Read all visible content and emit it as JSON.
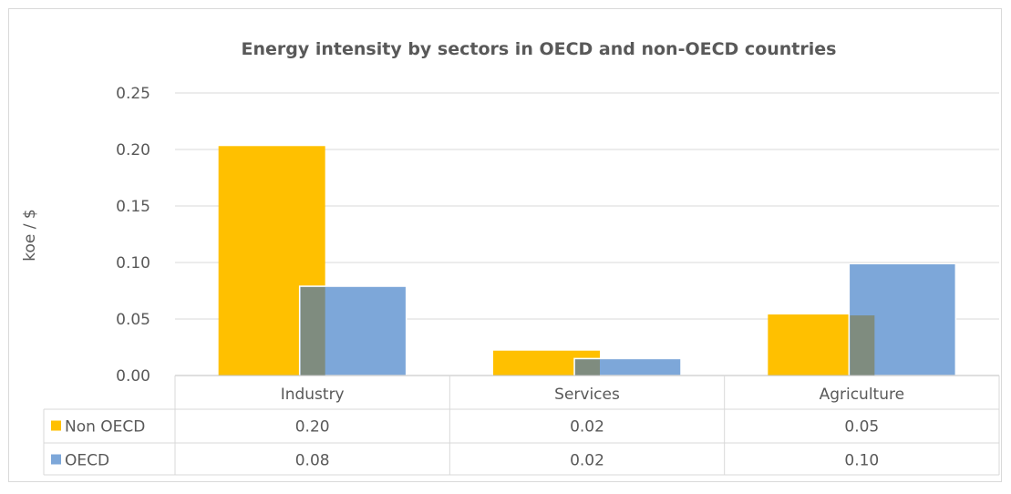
{
  "chart_data": {
    "type": "bar",
    "title": "Energy intensity by sectors in OECD and non-OECD countries",
    "xlabel": "",
    "ylabel": "koe / $",
    "ylim": [
      0,
      0.25
    ],
    "yticks": [
      "0.00",
      "0.05",
      "0.10",
      "0.15",
      "0.20",
      "0.25"
    ],
    "grid": true,
    "legend": "data-table",
    "categories": [
      "Industry",
      "Services",
      "Agriculture"
    ],
    "series": [
      {
        "name": "Non OECD",
        "color": "#ffc000",
        "values": [
          0.203,
          0.022,
          0.054
        ],
        "table_labels": [
          "0.20",
          "0.02",
          "0.05"
        ]
      },
      {
        "name": "OECD",
        "color": "#7da7d9",
        "values": [
          0.079,
          0.015,
          0.099
        ],
        "table_labels": [
          "0.08",
          "0.02",
          "0.10"
        ]
      }
    ]
  }
}
